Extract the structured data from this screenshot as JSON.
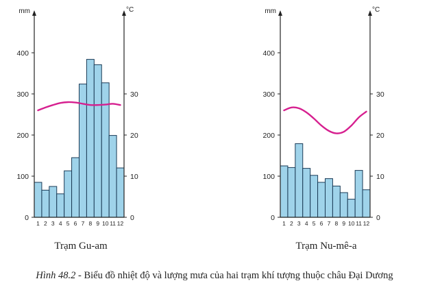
{
  "chart_data": [
    {
      "type": "bar+line",
      "title": "Trạm Gu-am",
      "left_unit": "mm",
      "right_unit": "°C",
      "left_ticks": [
        "0",
        "100",
        "200",
        "300",
        "400"
      ],
      "right_ticks": [
        "0",
        "10",
        "20",
        "30"
      ],
      "months": [
        "1",
        "2",
        "3",
        "4",
        "5",
        "6",
        "7",
        "8",
        "9",
        "10",
        "11",
        "12"
      ],
      "rainfall_ylim": [
        0,
        400
      ],
      "temperature_ylim": [
        0,
        40
      ],
      "rainfall": [
        85,
        66,
        75,
        57,
        113,
        145,
        324,
        384,
        371,
        327,
        199,
        120
      ],
      "temperature": [
        26,
        26.7,
        27.3,
        27.8,
        28,
        27.9,
        27.6,
        27.3,
        27.3,
        27.4,
        27.6,
        27.3
      ],
      "colors": {
        "bar": "#9fd3ea",
        "bar_edge": "#1a3a55",
        "line": "#d61f8f"
      }
    },
    {
      "type": "bar+line",
      "title": "Trạm Nu-mê-a",
      "left_unit": "mm",
      "right_unit": "°C",
      "left_ticks": [
        "0",
        "100",
        "200",
        "300",
        "400"
      ],
      "right_ticks": [
        "0",
        "10",
        "20",
        "30"
      ],
      "months": [
        "1",
        "2",
        "3",
        "4",
        "5",
        "6",
        "7",
        "8",
        "9",
        "10",
        "11",
        "12"
      ],
      "rainfall_ylim": [
        0,
        400
      ],
      "temperature_ylim": [
        0,
        40
      ],
      "rainfall": [
        125,
        121,
        179,
        119,
        102,
        85,
        94,
        76,
        60,
        44,
        114,
        67
      ],
      "temperature": [
        26,
        26.7,
        26.5,
        25.5,
        24,
        22.3,
        21,
        20.4,
        20.8,
        22.3,
        24.3,
        25.7
      ],
      "colors": {
        "bar": "#9fd3ea",
        "bar_edge": "#1a3a55",
        "line": "#d61f8f"
      }
    }
  ],
  "caption": {
    "lead": "Hình 48.2",
    "text": " - Biểu đồ nhiệt độ và lượng mưa của hai trạm khí tượng thuộc châu Đại Dương"
  }
}
